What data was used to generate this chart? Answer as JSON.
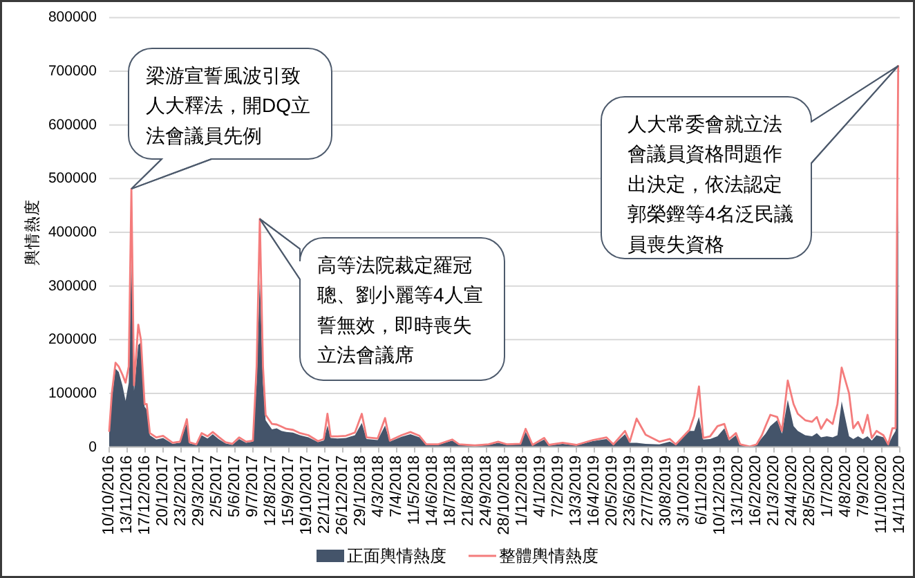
{
  "chart_data": {
    "type": "line",
    "ylabel": "輿情熱度",
    "x": [
      "2016-10-10",
      "2016-10-15",
      "2016-10-22",
      "2016-10-28",
      "2016-11-04",
      "2016-11-10",
      "2016-11-16",
      "2016-11-21",
      "2016-11-26",
      "2016-12-04",
      "2016-12-09",
      "2016-12-16",
      "2016-12-20",
      "2016-12-26",
      "2017-01-07",
      "2017-01-20",
      "2017-02-07",
      "2017-02-21",
      "2017-03-06",
      "2017-03-11",
      "2017-03-24",
      "2017-04-03",
      "2017-04-14",
      "2017-04-24",
      "2017-05-05",
      "2017-05-18",
      "2017-05-31",
      "2017-06-13",
      "2017-06-26",
      "2017-07-09",
      "2017-07-16",
      "2017-07-22",
      "2017-07-28",
      "2017-08-02",
      "2017-08-14",
      "2017-08-23",
      "2017-09-01",
      "2017-09-10",
      "2017-09-23",
      "2017-10-06",
      "2017-10-22",
      "2017-11-09",
      "2017-11-20",
      "2017-11-27",
      "2017-12-03",
      "2017-12-16",
      "2018-01-01",
      "2018-01-18",
      "2018-01-31",
      "2018-02-09",
      "2018-03-02",
      "2018-03-16",
      "2018-03-25",
      "2018-04-16",
      "2018-05-03",
      "2018-05-20",
      "2018-06-02",
      "2018-06-24",
      "2018-07-21",
      "2018-08-03",
      "2018-09-02",
      "2018-09-28",
      "2018-10-16",
      "2018-11-02",
      "2018-11-27",
      "2018-12-07",
      "2018-12-20",
      "2019-01-11",
      "2019-01-20",
      "2019-02-15",
      "2019-03-13",
      "2019-04-13",
      "2019-05-09",
      "2019-05-22",
      "2019-06-13",
      "2019-06-22",
      "2019-07-05",
      "2019-07-22",
      "2019-08-17",
      "2019-09-06",
      "2019-09-17",
      "2019-10-13",
      "2019-10-22",
      "2019-10-31",
      "2019-11-08",
      "2019-11-21",
      "2019-12-05",
      "2019-12-18",
      "2019-12-27",
      "2020-01-09",
      "2020-01-17",
      "2020-02-04",
      "2020-02-17",
      "2020-02-27",
      "2020-03-05",
      "2020-03-14",
      "2020-03-27",
      "2020-04-05",
      "2020-04-16",
      "2020-04-27",
      "2020-05-05",
      "2020-05-19",
      "2020-06-01",
      "2020-06-10",
      "2020-06-18",
      "2020-06-29",
      "2020-07-10",
      "2020-07-19",
      "2020-07-27",
      "2020-08-10",
      "2020-08-18",
      "2020-08-27",
      "2020-09-05",
      "2020-09-14",
      "2020-09-22",
      "2020-10-01",
      "2020-10-14",
      "2020-10-23",
      "2020-10-31",
      "2020-11-06",
      "2020-11-11"
    ],
    "series": [
      {
        "name": "正面輿情熱度",
        "type": "area",
        "color": "#44546a",
        "values": [
          28000,
          90000,
          146000,
          140000,
          115000,
          86000,
          120000,
          352000,
          105000,
          190000,
          195000,
          75000,
          70000,
          22000,
          14000,
          17000,
          6000,
          8000,
          45000,
          7000,
          4000,
          22000,
          16000,
          24000,
          15000,
          7000,
          4000,
          15000,
          8000,
          10000,
          120000,
          313000,
          120000,
          50000,
          33000,
          35000,
          30000,
          28000,
          27000,
          22000,
          18000,
          9000,
          12000,
          40000,
          17000,
          16000,
          17000,
          22000,
          45000,
          15000,
          13000,
          40000,
          10000,
          19000,
          24000,
          18000,
          4000,
          4000,
          12000,
          4000,
          2000,
          4000,
          8000,
          4000,
          5000,
          28000,
          3000,
          14000,
          3000,
          6000,
          3000,
          11000,
          15000,
          4000,
          24000,
          8000,
          8000,
          6000,
          5000,
          10000,
          4000,
          30000,
          30000,
          56000,
          14000,
          15000,
          20000,
          35000,
          12000,
          22000,
          4000,
          1000,
          4000,
          17000,
          25000,
          39000,
          50000,
          25000,
          88000,
          39000,
          30000,
          22000,
          20000,
          26000,
          18000,
          20000,
          18000,
          22000,
          85000,
          20000,
          15000,
          20000,
          15000,
          20000,
          12000,
          22000,
          18000,
          4000,
          20000,
          30000,
          472000
        ]
      },
      {
        "name": "整體輿情熱度",
        "type": "line",
        "color": "#f47c7c",
        "values": [
          30000,
          100000,
          157000,
          150000,
          135000,
          120000,
          150000,
          481000,
          115000,
          228000,
          200000,
          80000,
          80000,
          26000,
          18000,
          21000,
          8000,
          10000,
          52000,
          9000,
          5000,
          26000,
          20000,
          28000,
          19000,
          9000,
          6000,
          18000,
          10000,
          12000,
          150000,
          425000,
          150000,
          60000,
          43000,
          42000,
          38000,
          34000,
          32000,
          26000,
          22000,
          11000,
          15000,
          62000,
          20000,
          20000,
          21000,
          27000,
          62000,
          18000,
          16000,
          54000,
          12000,
          22000,
          28000,
          21000,
          5000,
          5000,
          14000,
          5000,
          3000,
          5000,
          10000,
          5000,
          6000,
          34000,
          4000,
          17000,
          4000,
          8000,
          4000,
          13000,
          18000,
          5000,
          30000,
          10000,
          53000,
          23000,
          10000,
          15000,
          5000,
          32000,
          58000,
          113000,
          17000,
          20000,
          39000,
          43000,
          15000,
          26000,
          5000,
          1000,
          5000,
          22000,
          39000,
          60000,
          56000,
          30000,
          124000,
          80000,
          62000,
          50000,
          47000,
          56000,
          34000,
          52000,
          43000,
          80000,
          148000,
          100000,
          35000,
          47000,
          26000,
          60000,
          17000,
          30000,
          22000,
          5000,
          35000,
          35000,
          710000
        ]
      }
    ],
    "xlim": [
      "2016-10-10",
      "2020-11-14"
    ],
    "xticks": [
      {
        "value": "2016-10-10",
        "label": "10/10/2016"
      },
      {
        "value": "2016-11-13",
        "label": "13/11/2016"
      },
      {
        "value": "2016-12-17",
        "label": "17/12/2016"
      },
      {
        "value": "2017-01-20",
        "label": "20/1/2017"
      },
      {
        "value": "2017-02-23",
        "label": "23/2/2017"
      },
      {
        "value": "2017-03-29",
        "label": "29/3/2017"
      },
      {
        "value": "2017-05-02",
        "label": "2/5/2017"
      },
      {
        "value": "2017-06-05",
        "label": "5/6/2017"
      },
      {
        "value": "2017-07-09",
        "label": "9/7/2017"
      },
      {
        "value": "2017-08-12",
        "label": "12/8/2017"
      },
      {
        "value": "2017-09-15",
        "label": "15/9/2017"
      },
      {
        "value": "2017-10-19",
        "label": "19/10/2017"
      },
      {
        "value": "2017-11-22",
        "label": "22/11/2017"
      },
      {
        "value": "2017-12-26",
        "label": "26/12/2017"
      },
      {
        "value": "2018-01-29",
        "label": "29/1/2018"
      },
      {
        "value": "2018-03-04",
        "label": "4/3/2018"
      },
      {
        "value": "2018-04-07",
        "label": "7/4/2018"
      },
      {
        "value": "2018-05-11",
        "label": "11/5/2018"
      },
      {
        "value": "2018-06-14",
        "label": "14/6/2018"
      },
      {
        "value": "2018-07-18",
        "label": "18/7/2018"
      },
      {
        "value": "2018-08-21",
        "label": "21/8/2018"
      },
      {
        "value": "2018-09-24",
        "label": "24/9/2018"
      },
      {
        "value": "2018-10-28",
        "label": "28/10/2018"
      },
      {
        "value": "2018-12-01",
        "label": "1/12/2018"
      },
      {
        "value": "2019-01-04",
        "label": "4/1/2019"
      },
      {
        "value": "2019-02-07",
        "label": "7/2/2019"
      },
      {
        "value": "2019-03-13",
        "label": "13/3/2019"
      },
      {
        "value": "2019-04-16",
        "label": "16/4/2019"
      },
      {
        "value": "2019-05-20",
        "label": "20/5/2019"
      },
      {
        "value": "2019-06-23",
        "label": "23/6/2019"
      },
      {
        "value": "2019-07-27",
        "label": "27/7/2019"
      },
      {
        "value": "2019-08-30",
        "label": "30/8/2019"
      },
      {
        "value": "2019-10-03",
        "label": "3/10/2019"
      },
      {
        "value": "2019-11-06",
        "label": "6/11/2019"
      },
      {
        "value": "2019-12-10",
        "label": "10/12/2019"
      },
      {
        "value": "2020-01-13",
        "label": "13/1/2020"
      },
      {
        "value": "2020-02-16",
        "label": "16/2/2020"
      },
      {
        "value": "2020-03-21",
        "label": "21/3/2020"
      },
      {
        "value": "2020-04-24",
        "label": "24/4/2020"
      },
      {
        "value": "2020-05-28",
        "label": "28/5/2020"
      },
      {
        "value": "2020-07-01",
        "label": "1/7/2020"
      },
      {
        "value": "2020-08-04",
        "label": "4/8/2020"
      },
      {
        "value": "2020-09-07",
        "label": "7/9/2020"
      },
      {
        "value": "2020-10-11",
        "label": "11/10/2020"
      },
      {
        "value": "2020-11-14",
        "label": "14/11/2020"
      }
    ],
    "ylim": [
      0,
      800000
    ],
    "yticks": [
      0,
      100000,
      200000,
      300000,
      400000,
      500000,
      600000,
      700000,
      800000
    ],
    "grid": "y",
    "legend": "bottom",
    "annotations": [
      {
        "text": "梁游宣誓風波引致人大釋法，開DQ立法會議員先例",
        "x": "2016-11-21",
        "y": 481000
      },
      {
        "text": "高等法院裁定羅冠聰、劉小麗等4人宣誓無效，即時喪失立法會議席",
        "x": "2017-07-22",
        "y": 425000
      },
      {
        "text": "人大常委會就立法會議員資格問題作出決定，依法認定郭榮鏗等4名泛民議員喪失資格",
        "x": "2020-11-11",
        "y": 710000
      }
    ]
  }
}
